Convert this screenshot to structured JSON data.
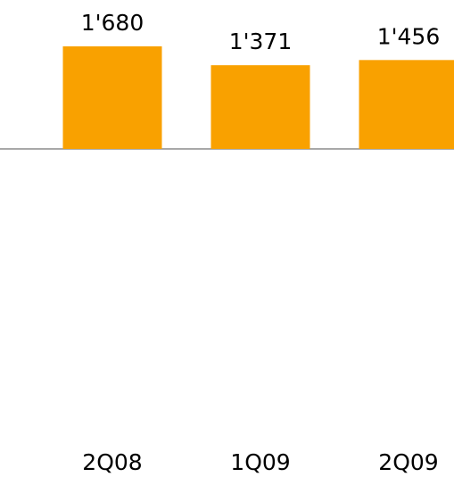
{
  "chart_data": {
    "type": "bar",
    "categories": [
      "2Q08",
      "1Q09",
      "2Q09"
    ],
    "values": [
      1680,
      1371,
      1456
    ],
    "value_labels": [
      "1'680",
      "1'371",
      "1'456"
    ],
    "color": "#f9a100"
  }
}
